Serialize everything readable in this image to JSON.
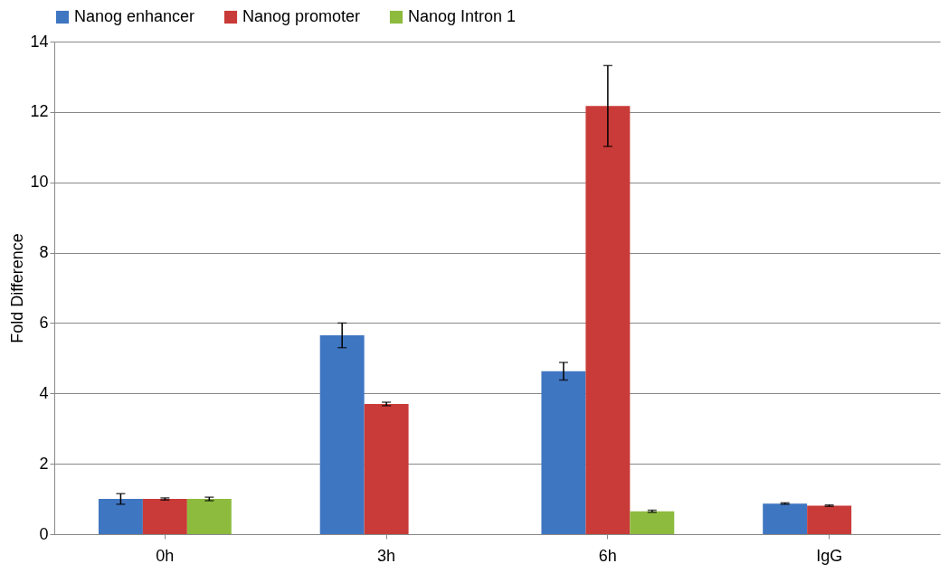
{
  "chart_data": {
    "type": "bar",
    "ylabel": "Fold Difference",
    "categories": [
      "0h",
      "3h",
      "6h",
      "IgG"
    ],
    "series": [
      {
        "name": "Nanog enhancer",
        "color": "#3f76c2",
        "values": [
          1.0,
          5.65,
          4.63,
          0.87
        ],
        "errors": [
          0.15,
          0.35,
          0.25,
          0.02
        ]
      },
      {
        "name": "Nanog promoter",
        "color": "#c93b38",
        "values": [
          1.0,
          3.7,
          12.17,
          0.81
        ],
        "errors": [
          0.03,
          0.05,
          1.15,
          0.02
        ]
      },
      {
        "name": "Nanog Intron 1",
        "color": "#8dbb3e",
        "values": [
          1.0,
          null,
          0.65,
          null
        ],
        "errors": [
          0.05,
          null,
          0.03,
          null
        ]
      }
    ],
    "ylim": [
      0,
      14
    ],
    "yticks": [
      0,
      2,
      4,
      6,
      8,
      10,
      12,
      14
    ],
    "grid": "y",
    "legend": "top"
  }
}
